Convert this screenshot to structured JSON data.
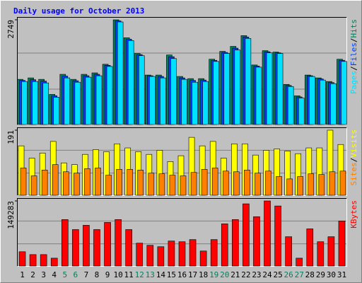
{
  "chart_data": [
    {
      "type": "bar",
      "title": "Daily usage for October 2013",
      "categories": [
        "1",
        "2",
        "3",
        "4",
        "5",
        "6",
        "7",
        "8",
        "9",
        "10",
        "11",
        "12",
        "13",
        "14",
        "15",
        "16",
        "17",
        "18",
        "19",
        "20",
        "21",
        "22",
        "23",
        "24",
        "25",
        "26",
        "27",
        "28",
        "29",
        "30",
        "31"
      ],
      "category_colors": [
        "#000000",
        "#000000",
        "#000000",
        "#000000",
        "#00805c",
        "#00805c",
        "#000000",
        "#000000",
        "#000000",
        "#000000",
        "#000000",
        "#00805c",
        "#00805c",
        "#000000",
        "#000000",
        "#000000",
        "#000000",
        "#000000",
        "#00805c",
        "#00805c",
        "#000000",
        "#000000",
        "#000000",
        "#000000",
        "#000000",
        "#00805c",
        "#00805c",
        "#000000",
        "#000000",
        "#000000",
        "#000000"
      ],
      "ylim": [
        0,
        2749
      ],
      "yticks": [
        2749
      ],
      "series": [
        {
          "name": "Hits",
          "color": "#00805c",
          "values": [
            1186,
            1224,
            1186,
            791,
            1318,
            1186,
            1318,
            1356,
            1582,
            2749,
            2278,
            1864,
            1299,
            1299,
            1826,
            1262,
            1205,
            1205,
            1714,
            1921,
            2052,
            2335,
            1563,
            1939,
            1902,
            1054,
            753,
            1299,
            1224,
            1130,
            1714
          ]
        },
        {
          "name": "Files",
          "color": "#0040ff",
          "values": [
            1158,
            1177,
            1139,
            754,
            1271,
            1149,
            1281,
            1318,
            1554,
            2721,
            2241,
            1836,
            1281,
            1262,
            1779,
            1224,
            1158,
            1168,
            1686,
            1893,
            2005,
            2298,
            1535,
            1911,
            1883,
            1026,
            725,
            1281,
            1196,
            1102,
            1686
          ]
        },
        {
          "name": "Pages",
          "color": "#00e0ff",
          "values": [
            1130,
            1130,
            1092,
            716,
            1224,
            1111,
            1243,
            1280,
            1525,
            2693,
            2203,
            1808,
            1262,
            1224,
            1732,
            1186,
            1111,
            1130,
            1657,
            1864,
            1958,
            2260,
            1506,
            1883,
            1864,
            998,
            697,
            1262,
            1167,
            1073,
            1657
          ]
        }
      ]
    },
    {
      "type": "bar",
      "ylim": [
        0,
        191
      ],
      "yticks": [
        191
      ],
      "series": [
        {
          "name": "Visits",
          "color": "#ffff00",
          "values": [
            145,
            109,
            124,
            158,
            95,
            90,
            120,
            134,
            128,
            151,
            139,
            128,
            120,
            132,
            99,
            116,
            170,
            145,
            158,
            109,
            151,
            151,
            118,
            132,
            136,
            130,
            122,
            139,
            139,
            191,
            149
          ]
        },
        {
          "name": "Sites",
          "color": "#ff8000",
          "values": [
            80,
            57,
            74,
            90,
            69,
            65,
            78,
            80,
            59,
            76,
            76,
            74,
            65,
            63,
            59,
            57,
            67,
            76,
            80,
            71,
            69,
            74,
            65,
            71,
            55,
            48,
            55,
            63,
            61,
            69,
            71
          ]
        }
      ]
    },
    {
      "type": "bar",
      "ylim": [
        0,
        149283
      ],
      "yticks": [
        149283
      ],
      "series": [
        {
          "name": "KBytes",
          "color": "#ff0000",
          "values": [
            32800,
            26240,
            26240,
            18040,
            106600,
            83640,
            93480,
            83640,
            100040,
            106600,
            83640,
            52480,
            47560,
            44280,
            57400,
            55760,
            60680,
            34440,
            60680,
            96760,
            106600,
            142680,
            113160,
            149283,
            137760,
            67240,
            18040,
            85280,
            55760,
            67240,
            103320
          ]
        }
      ]
    }
  ]
}
